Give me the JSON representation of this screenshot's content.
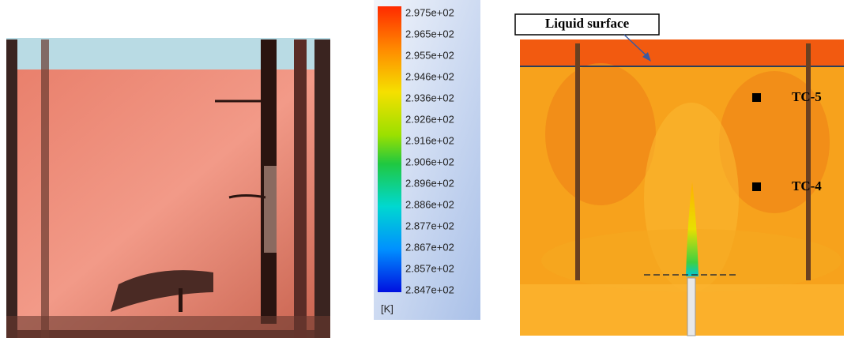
{
  "colorbar": {
    "labels": [
      "2.975e+02",
      "2.965e+02",
      "2.955e+02",
      "2.946e+02",
      "2.936e+02",
      "2.926e+02",
      "2.916e+02",
      "2.906e+02",
      "2.896e+02",
      "2.886e+02",
      "2.877e+02",
      "2.867e+02",
      "2.857e+02",
      "2.847e+02"
    ],
    "unit": "[K]"
  },
  "annotations": {
    "surface": "Liquid surface",
    "tc5": "TC-5",
    "tc4": "TC-4"
  }
}
